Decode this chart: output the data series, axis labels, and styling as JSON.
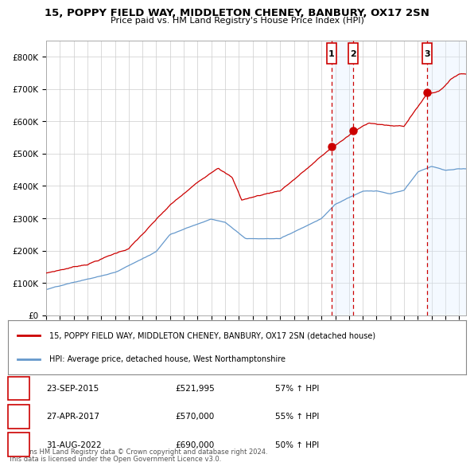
{
  "title": "15, POPPY FIELD WAY, MIDDLETON CHENEY, BANBURY, OX17 2SN",
  "subtitle": "Price paid vs. HM Land Registry's House Price Index (HPI)",
  "legend_line1": "15, POPPY FIELD WAY, MIDDLETON CHENEY, BANBURY, OX17 2SN (detached house)",
  "legend_line2": "HPI: Average price, detached house, West Northamptonshire",
  "footer1": "Contains HM Land Registry data © Crown copyright and database right 2024.",
  "footer2": "This data is licensed under the Open Government Licence v3.0.",
  "sales": [
    {
      "label": "1",
      "date": "23-SEP-2015",
      "price": 521995,
      "hpi_pct": "57% ↑ HPI",
      "x_year": 2015.73
    },
    {
      "label": "2",
      "date": "27-APR-2017",
      "price": 570000,
      "hpi_pct": "55% ↑ HPI",
      "x_year": 2017.32
    },
    {
      "label": "3",
      "date": "31-AUG-2022",
      "price": 690000,
      "hpi_pct": "50% ↑ HPI",
      "x_year": 2022.66
    }
  ],
  "red_color": "#cc0000",
  "blue_color": "#6699cc",
  "shading_color": "#ddeeff",
  "grid_color": "#cccccc",
  "bg_color": "#ffffff",
  "ylim": [
    0,
    850000
  ],
  "xlim_start": 1995,
  "xlim_end": 2025.5,
  "red_anchors_x": [
    1995,
    1998,
    2001,
    2004,
    2007.5,
    2008.5,
    2009.2,
    2012,
    2015.73,
    2017.32,
    2018.5,
    2019.5,
    2020,
    2021,
    2022.66,
    2023.5,
    2024.5,
    2025
  ],
  "red_anchors_y": [
    130000,
    160000,
    210000,
    340000,
    460000,
    430000,
    360000,
    390000,
    521995,
    570000,
    600000,
    595000,
    590000,
    590000,
    690000,
    700000,
    740000,
    755000
  ],
  "blue_anchors_x": [
    1995,
    1997,
    2000,
    2003,
    2004,
    2007,
    2008,
    2009.5,
    2012,
    2015,
    2016,
    2017,
    2018,
    2019,
    2020,
    2021,
    2022,
    2023,
    2024,
    2025
  ],
  "blue_anchors_y": [
    80000,
    100000,
    130000,
    195000,
    250000,
    300000,
    290000,
    240000,
    240000,
    305000,
    350000,
    370000,
    390000,
    390000,
    380000,
    390000,
    445000,
    463000,
    450000,
    455000
  ]
}
